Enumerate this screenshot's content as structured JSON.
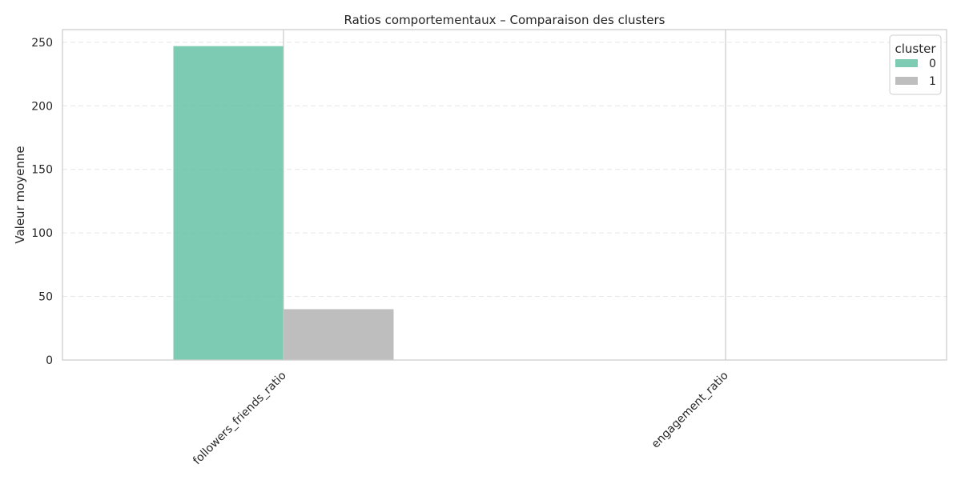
{
  "chart_data": {
    "type": "bar",
    "title": "Ratios comportementaux – Comparaison des clusters",
    "xlabel": "",
    "ylabel": "Valeur moyenne",
    "categories": [
      "followers_friends_ratio",
      "engagement_ratio"
    ],
    "series": [
      {
        "name": "0",
        "color": "#66c2a5",
        "values": [
          247,
          0.3
        ]
      },
      {
        "name": "1",
        "color": "#b3b3b3",
        "values": [
          40,
          0.2
        ]
      }
    ],
    "ylim": [
      0,
      260
    ],
    "yticks": [
      0,
      50,
      100,
      150,
      200,
      250
    ],
    "grid": true,
    "legend": {
      "title": "cluster",
      "placement": "top-right"
    }
  }
}
